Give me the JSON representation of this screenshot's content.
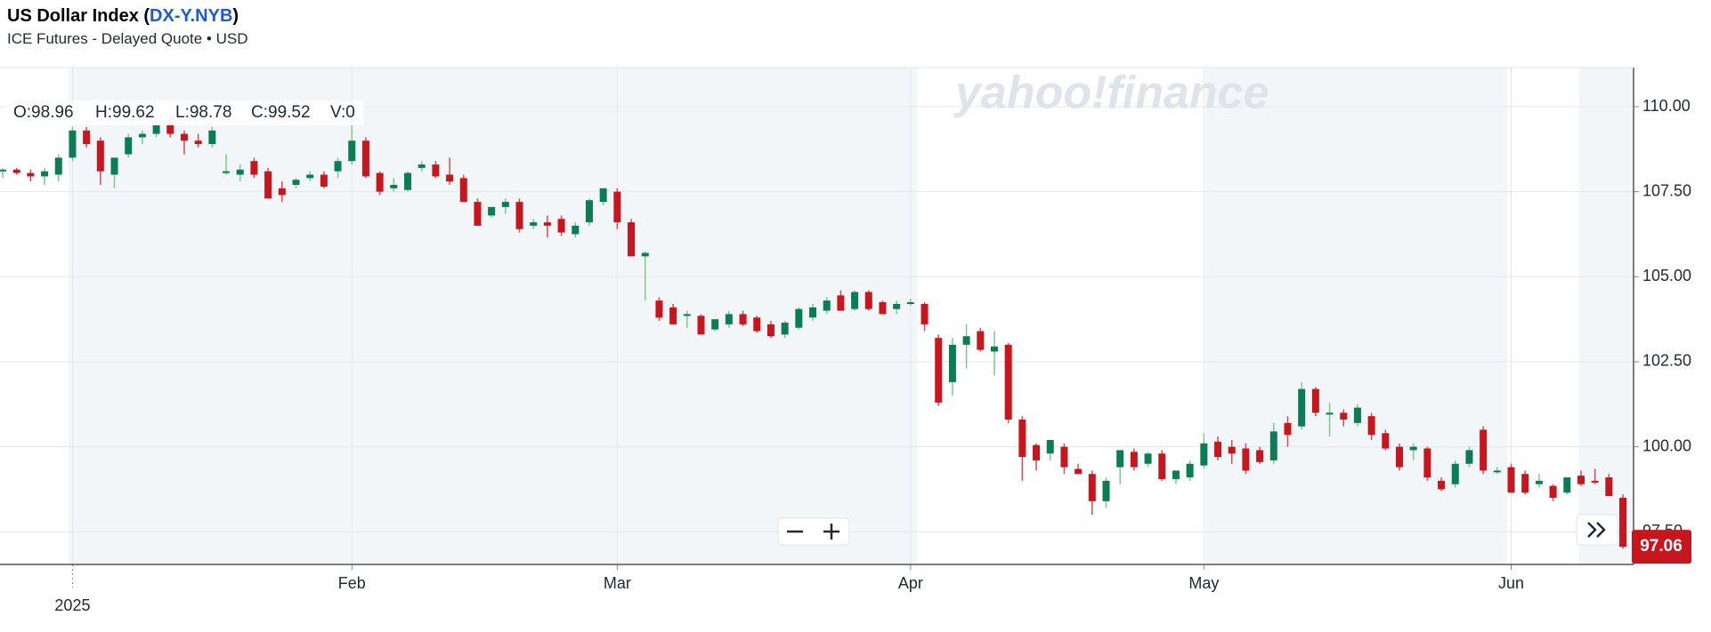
{
  "header": {
    "title_parts": [
      "US Dollar Index (",
      "DX-Y.NYB",
      ")"
    ],
    "subtitle": "ICE Futures - Delayed Quote • USD"
  },
  "chart_data": {
    "type": "candlestick",
    "watermark": "yahoo!finance",
    "ohlc_legend": [
      "O:98.96",
      "H:99.62",
      "L:98.78",
      "C:99.52",
      "V:0"
    ],
    "last_price": 97.06,
    "up_color": "#0a7d55",
    "down_color": "#c7161d",
    "up_wick": "#7cc98f",
    "down_wick": "#d94a4f",
    "categories": [
      null,
      null,
      null,
      null,
      null,
      "2025",
      null,
      null,
      null,
      null,
      null,
      null,
      null,
      null,
      null,
      null,
      null,
      null,
      null,
      null,
      null,
      null,
      null,
      null,
      null,
      "Feb",
      null,
      null,
      null,
      null,
      null,
      null,
      null,
      null,
      null,
      null,
      null,
      null,
      null,
      null,
      null,
      null,
      null,
      null,
      "Mar",
      null,
      null,
      null,
      null,
      null,
      null,
      null,
      null,
      null,
      null,
      null,
      null,
      null,
      null,
      null,
      null,
      null,
      null,
      null,
      null,
      "Apr",
      null,
      null,
      null,
      null,
      null,
      null,
      null,
      null,
      null,
      null,
      null,
      null,
      null,
      null,
      null,
      null,
      null,
      null,
      null,
      null,
      "May",
      null,
      null,
      null,
      null,
      null,
      null,
      null,
      null,
      null,
      null,
      null,
      null,
      null,
      null,
      null,
      null,
      null,
      null,
      null,
      null,
      null,
      "Jun",
      null,
      null,
      null,
      null,
      null,
      null,
      null,
      null
    ],
    "open": [
      108.1,
      108.15,
      108.05,
      107.95,
      108.0,
      108.5,
      109.3,
      109.0,
      108.0,
      108.6,
      109.1,
      109.2,
      109.5,
      109.2,
      109.0,
      108.9,
      108.05,
      108.0,
      108.4,
      108.1,
      107.6,
      107.7,
      107.9,
      108.0,
      108.1,
      108.4,
      109.0,
      108.05,
      107.6,
      107.55,
      108.2,
      108.3,
      108.0,
      107.9,
      107.2,
      106.8,
      107.05,
      107.2,
      106.5,
      106.6,
      106.7,
      106.25,
      106.6,
      107.2,
      107.5,
      106.6,
      105.6,
      104.3,
      104.1,
      103.85,
      103.85,
      103.45,
      103.6,
      103.9,
      103.8,
      103.6,
      103.3,
      103.5,
      103.8,
      104.0,
      104.45,
      104.05,
      104.55,
      104.25,
      104.05,
      104.2,
      104.2,
      103.2,
      101.9,
      103.0,
      103.4,
      102.8,
      103.0,
      100.8,
      100.05,
      99.8,
      100.0,
      99.35,
      99.2,
      98.4,
      99.4,
      99.85,
      99.5,
      99.8,
      99.05,
      99.1,
      99.45,
      100.15,
      100.0,
      99.95,
      99.9,
      99.6,
      100.7,
      100.6,
      101.7,
      100.95,
      101.0,
      100.7,
      100.9,
      100.4,
      100.0,
      99.9,
      99.95,
      99.0,
      98.9,
      99.5,
      100.5,
      99.25,
      99.4,
      99.2,
      98.9,
      98.85,
      98.65,
      99.15,
      99.0,
      99.1,
      98.5
    ],
    "high": [
      108.2,
      108.2,
      108.15,
      108.2,
      108.6,
      109.4,
      109.4,
      109.1,
      108.5,
      109.2,
      109.3,
      109.5,
      109.7,
      109.3,
      109.2,
      109.4,
      108.6,
      108.3,
      108.5,
      108.2,
      107.8,
      107.9,
      108.1,
      108.1,
      108.5,
      109.9,
      109.1,
      108.1,
      107.9,
      108.1,
      108.4,
      108.4,
      108.5,
      108.0,
      107.3,
      107.0,
      107.3,
      107.3,
      106.7,
      106.8,
      106.8,
      106.6,
      107.3,
      107.6,
      107.6,
      106.7,
      105.75,
      104.4,
      104.2,
      104.0,
      103.9,
      103.7,
      104.0,
      104.0,
      103.85,
      103.7,
      103.7,
      104.1,
      104.2,
      104.4,
      104.6,
      104.6,
      104.6,
      104.3,
      104.3,
      104.35,
      104.25,
      103.3,
      103.2,
      103.6,
      103.5,
      103.4,
      103.05,
      100.9,
      100.1,
      100.2,
      100.1,
      99.5,
      99.3,
      99.1,
      99.9,
      99.95,
      99.85,
      99.9,
      99.3,
      99.6,
      100.4,
      100.3,
      100.2,
      100.1,
      100.0,
      100.7,
      100.9,
      101.9,
      101.75,
      101.3,
      101.1,
      101.25,
      101.0,
      100.5,
      100.1,
      100.1,
      100.0,
      99.1,
      99.6,
      100.0,
      100.6,
      99.4,
      99.5,
      99.3,
      99.2,
      98.9,
      99.1,
      99.3,
      99.35,
      99.2,
      98.6
    ],
    "low": [
      107.9,
      108.0,
      107.8,
      107.7,
      107.8,
      108.4,
      108.8,
      107.7,
      107.6,
      108.5,
      108.9,
      109.1,
      109.1,
      108.6,
      108.8,
      108.8,
      108.0,
      107.8,
      107.9,
      107.3,
      107.2,
      107.6,
      107.8,
      107.6,
      107.9,
      108.3,
      107.9,
      107.4,
      107.5,
      107.5,
      108.1,
      107.9,
      107.7,
      107.2,
      106.5,
      106.75,
      106.85,
      106.3,
      106.4,
      106.15,
      106.2,
      106.15,
      106.5,
      107.1,
      106.4,
      105.6,
      104.3,
      103.7,
      103.6,
      103.5,
      103.3,
      103.4,
      103.5,
      103.55,
      103.35,
      103.2,
      103.2,
      103.45,
      103.7,
      103.9,
      104.0,
      104.0,
      104.0,
      103.9,
      103.9,
      104.15,
      103.4,
      101.2,
      101.5,
      102.3,
      102.8,
      102.1,
      100.7,
      99.0,
      99.3,
      99.6,
      99.2,
      99.2,
      98.0,
      98.2,
      98.9,
      99.3,
      99.4,
      99.0,
      98.9,
      99.0,
      99.35,
      99.6,
      99.5,
      99.2,
      99.5,
      99.5,
      100.0,
      100.5,
      100.9,
      100.3,
      100.6,
      100.6,
      100.2,
      99.9,
      99.3,
      99.6,
      99.0,
      98.7,
      98.8,
      99.4,
      99.2,
      99.2,
      98.65,
      98.6,
      98.8,
      98.4,
      98.6,
      98.85,
      98.9,
      98.55,
      97.0
    ],
    "close": [
      108.15,
      108.05,
      107.95,
      108.1,
      108.5,
      109.3,
      108.9,
      108.1,
      108.5,
      109.1,
      109.2,
      109.45,
      109.2,
      109.0,
      108.9,
      109.3,
      108.1,
      108.15,
      108.0,
      107.3,
      107.4,
      107.85,
      108.0,
      107.65,
      108.4,
      109.0,
      107.95,
      107.5,
      107.7,
      108.05,
      108.3,
      107.95,
      107.8,
      107.2,
      106.5,
      107.05,
      107.2,
      106.4,
      106.6,
      106.5,
      106.3,
      106.5,
      107.25,
      107.6,
      106.6,
      105.6,
      105.7,
      103.8,
      103.6,
      103.9,
      103.3,
      103.75,
      103.9,
      103.6,
      103.4,
      103.25,
      103.65,
      104.05,
      104.1,
      104.3,
      104.0,
      104.55,
      104.05,
      103.9,
      104.2,
      104.25,
      103.6,
      101.3,
      103.0,
      103.25,
      102.85,
      102.95,
      100.8,
      99.7,
      99.6,
      100.2,
      99.4,
      99.2,
      98.4,
      99.0,
      99.9,
      99.4,
      99.8,
      99.05,
      99.3,
      99.5,
      100.1,
      99.7,
      99.8,
      99.3,
      99.55,
      100.45,
      100.35,
      101.7,
      101.0,
      101.0,
      100.8,
      101.15,
      100.35,
      99.95,
      99.4,
      100.0,
      99.1,
      98.75,
      99.5,
      99.9,
      99.3,
      99.3,
      98.65,
      98.65,
      99.0,
      98.5,
      99.1,
      98.9,
      98.95,
      98.55,
      97.06
    ],
    "ylim": [
      96.54,
      111.15
    ],
    "yticks": [
      {
        "value": 97.5,
        "label": "97.50"
      },
      {
        "value": 100,
        "label": "100.00"
      },
      {
        "value": 102.5,
        "label": "102.50"
      },
      {
        "value": 105,
        "label": "105.00"
      },
      {
        "value": 107.5,
        "label": "107.50"
      },
      {
        "value": 110,
        "label": "110.00"
      }
    ],
    "grid": true
  }
}
